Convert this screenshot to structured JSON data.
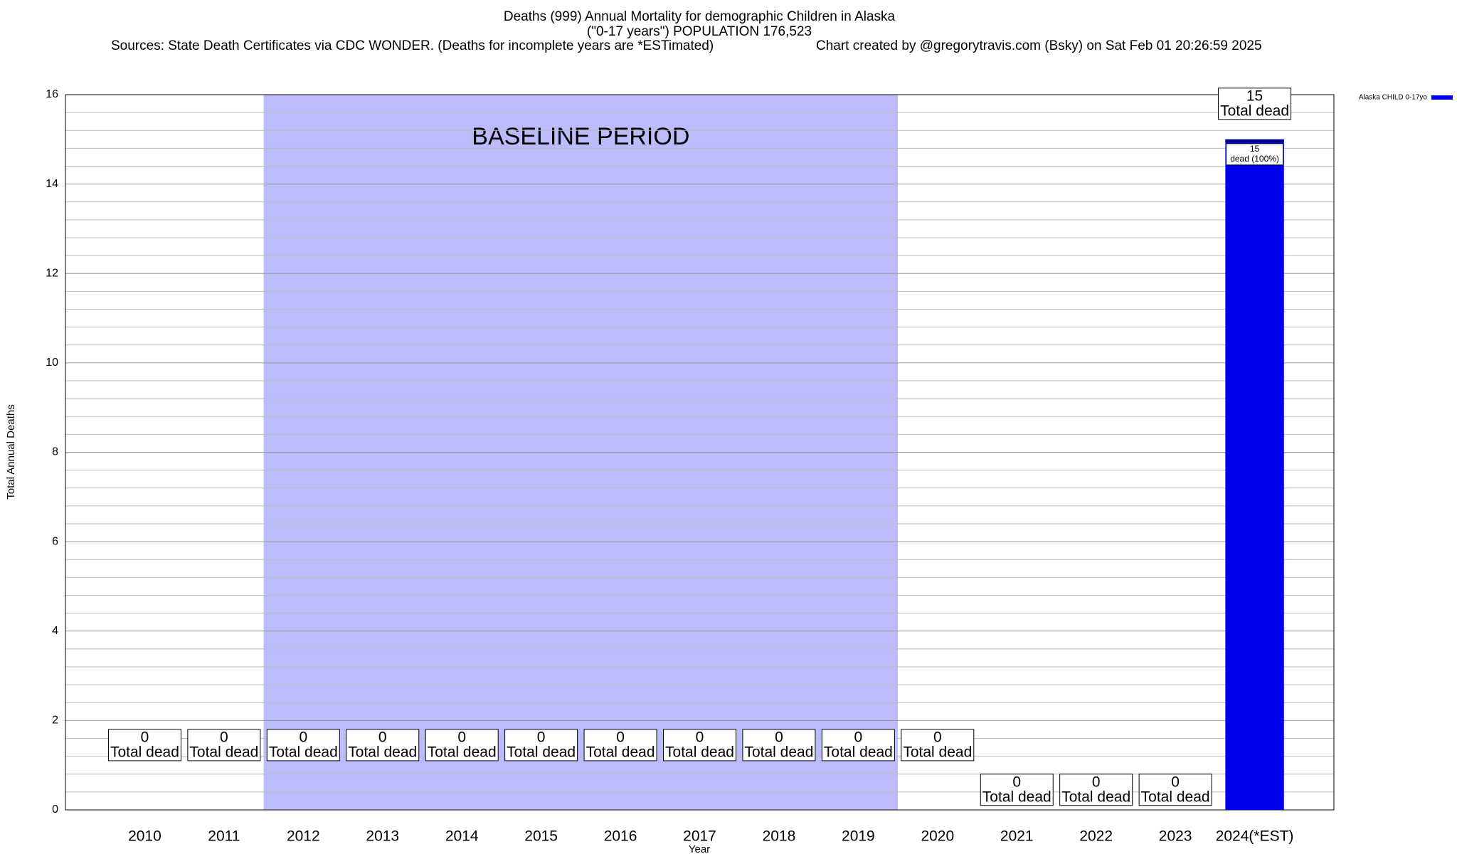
{
  "chart_data": {
    "type": "bar",
    "title": "Deaths (999) Annual Mortality for demographic Children in Alaska",
    "subtitle": "(\"0-17 years\") POPULATION 176,523",
    "sources": "Sources: State Death Certificates via CDC WONDER. (Deaths for incomplete years are *ESTimated)",
    "credit": "Chart created by @gregorytravis.com (Bsky) on Sat Feb 01 20:26:59 2025",
    "x_label": "Year",
    "y_label": "Total Annual Deaths",
    "categories": [
      "2010",
      "2011",
      "2012",
      "2013",
      "2014",
      "2015",
      "2016",
      "2017",
      "2018",
      "2019",
      "2020",
      "2021",
      "2022",
      "2023",
      "2024(*EST)"
    ],
    "series": [
      {
        "name": "Alaska CHILD 0-17yo",
        "color": "#0000ee",
        "values": [
          0,
          0,
          0,
          0,
          0,
          0,
          0,
          0,
          0,
          0,
          0,
          0,
          0,
          0,
          15
        ]
      }
    ],
    "total_label": "Total dead",
    "segment_label": "dead (100%)",
    "baseline": {
      "label": "BASELINE PERIOD",
      "start": "2012",
      "end": "2019",
      "color": "#bcbcfc"
    },
    "ylim": [
      0,
      16
    ],
    "yticks": [
      0,
      2,
      4,
      6,
      8,
      10,
      12,
      14,
      16
    ],
    "minor_yticks": [
      0.4,
      0.8,
      1.2,
      1.6,
      2.4,
      2.8,
      3.2,
      3.6,
      4.4,
      4.8,
      5.2,
      5.6,
      6.4,
      6.8,
      7.2,
      7.6,
      8.4,
      8.8,
      9.2,
      9.6,
      10.4,
      10.8,
      11.2,
      11.6,
      12.4,
      12.8,
      13.2,
      13.6,
      14.4,
      14.8,
      15.2,
      15.6
    ],
    "grid": true,
    "legend": "top-right"
  }
}
